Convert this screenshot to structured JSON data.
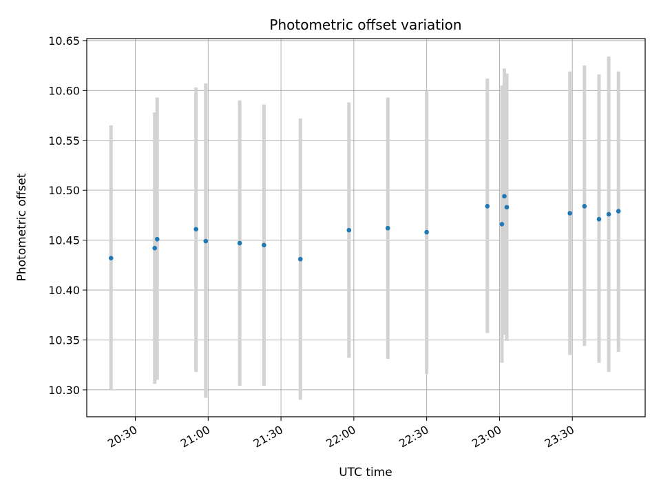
{
  "chart_data": {
    "type": "scatter",
    "title": "Photometric offset variation",
    "xlabel": "UTC time",
    "ylabel": "Photometric offset",
    "xlim": [
      "20:10",
      "24:00"
    ],
    "ylim": [
      10.273,
      10.652
    ],
    "x_ticks": [
      "20:30",
      "21:00",
      "21:30",
      "22:00",
      "22:30",
      "23:00",
      "23:30"
    ],
    "y_ticks": [
      "10.30",
      "10.35",
      "10.40",
      "10.45",
      "10.50",
      "10.55",
      "10.60",
      "10.65"
    ],
    "grid": true,
    "colors": {
      "points": "#1f77b4",
      "errorbars": "#d3d3d3",
      "grid": "#b0b0b0"
    },
    "points": [
      {
        "x": "20:20",
        "y": 10.432,
        "yerr_low": 10.3,
        "yerr_high": 10.565
      },
      {
        "x": "20:38",
        "y": 10.442,
        "yerr_low": 10.306,
        "yerr_high": 10.578
      },
      {
        "x": "20:39",
        "y": 10.451,
        "yerr_low": 10.31,
        "yerr_high": 10.593
      },
      {
        "x": "20:55",
        "y": 10.461,
        "yerr_low": 10.318,
        "yerr_high": 10.603
      },
      {
        "x": "20:59",
        "y": 10.449,
        "yerr_low": 10.292,
        "yerr_high": 10.607
      },
      {
        "x": "21:13",
        "y": 10.447,
        "yerr_low": 10.304,
        "yerr_high": 10.59
      },
      {
        "x": "21:23",
        "y": 10.445,
        "yerr_low": 10.304,
        "yerr_high": 10.586
      },
      {
        "x": "21:38",
        "y": 10.431,
        "yerr_low": 10.29,
        "yerr_high": 10.572
      },
      {
        "x": "21:58",
        "y": 10.46,
        "yerr_low": 10.332,
        "yerr_high": 10.588
      },
      {
        "x": "22:14",
        "y": 10.462,
        "yerr_low": 10.331,
        "yerr_high": 10.593
      },
      {
        "x": "22:30",
        "y": 10.458,
        "yerr_low": 10.316,
        "yerr_high": 10.6
      },
      {
        "x": "22:55",
        "y": 10.484,
        "yerr_low": 10.357,
        "yerr_high": 10.612
      },
      {
        "x": "23:01",
        "y": 10.466,
        "yerr_low": 10.327,
        "yerr_high": 10.605
      },
      {
        "x": "23:02",
        "y": 10.494,
        "yerr_low": 10.355,
        "yerr_high": 10.622
      },
      {
        "x": "23:03",
        "y": 10.483,
        "yerr_low": 10.349,
        "yerr_high": 10.617
      },
      {
        "x": "23:29",
        "y": 10.477,
        "yerr_low": 10.335,
        "yerr_high": 10.619
      },
      {
        "x": "23:35",
        "y": 10.484,
        "yerr_low": 10.344,
        "yerr_high": 10.625
      },
      {
        "x": "23:41",
        "y": 10.471,
        "yerr_low": 10.327,
        "yerr_high": 10.616
      },
      {
        "x": "23:45",
        "y": 10.476,
        "yerr_low": 10.318,
        "yerr_high": 10.634
      },
      {
        "x": "23:49",
        "y": 10.479,
        "yerr_low": 10.338,
        "yerr_high": 10.619
      }
    ]
  }
}
